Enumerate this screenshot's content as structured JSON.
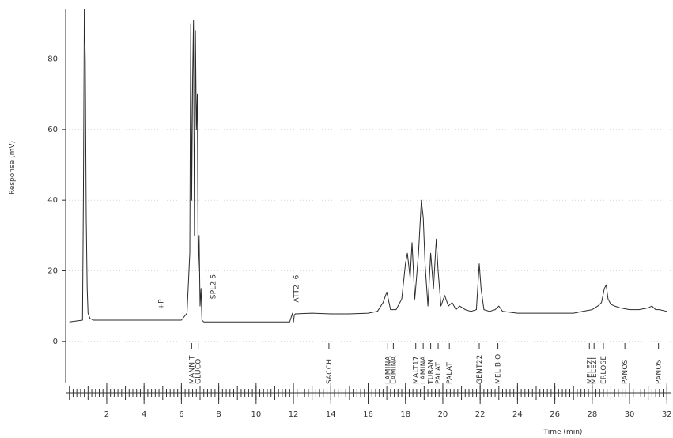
{
  "chart_data": {
    "type": "line",
    "xlabel": "Time (min)",
    "ylabel": "Response (mV)",
    "xlim": [
      -0.2,
      32.2
    ],
    "ylim": [
      -9,
      94
    ],
    "x_ticks": [
      "2",
      "4",
      "6",
      "8",
      "10",
      "12",
      "14",
      "16",
      "18",
      "20",
      "22",
      "24",
      "26",
      "28",
      "30",
      "32"
    ],
    "x_tick_values": [
      2,
      4,
      6,
      8,
      10,
      12,
      14,
      16,
      18,
      20,
      22,
      24,
      26,
      28,
      30,
      32
    ],
    "y_ticks": [
      "0",
      "20",
      "40",
      "60",
      "80"
    ],
    "y_tick_values": [
      0,
      20,
      40,
      60,
      80
    ],
    "grid": true,
    "series": [
      {
        "x": [
          0.0,
          0.7,
          0.75,
          0.8,
          0.85,
          0.9,
          0.95,
          1.0,
          1.1,
          1.3,
          1.6,
          2.0,
          3.0,
          4.0,
          5.0,
          5.8,
          6.0,
          6.3,
          6.45,
          6.5,
          6.55,
          6.6,
          6.65,
          6.7,
          6.75,
          6.8,
          6.85,
          6.9,
          6.95,
          7.0,
          7.05,
          7.1,
          7.2,
          7.5,
          8.0,
          9.0,
          10.0,
          11.0,
          11.8,
          11.95,
          12.0,
          12.05,
          12.1,
          13.0,
          14.0,
          15.0,
          16.0,
          16.5,
          16.8,
          17.0,
          17.2,
          17.5,
          17.8,
          18.0,
          18.1,
          18.25,
          18.35,
          18.5,
          18.7,
          18.85,
          18.95,
          19.05,
          19.2,
          19.35,
          19.5,
          19.65,
          19.75,
          19.9,
          20.1,
          20.3,
          20.5,
          20.7,
          20.9,
          21.2,
          21.5,
          21.8,
          21.95,
          22.05,
          22.2,
          22.5,
          22.8,
          23.0,
          23.2,
          24.0,
          25.0,
          26.0,
          27.0,
          27.5,
          28.0,
          28.3,
          28.5,
          28.65,
          28.75,
          28.85,
          29.0,
          29.2,
          29.5,
          30.0,
          30.5,
          31.0,
          31.2,
          31.4,
          31.6,
          32.0
        ],
        "values": [
          5.5,
          6,
          40,
          94,
          80,
          35,
          15,
          8,
          6.5,
          6,
          6,
          6,
          6,
          6,
          6,
          6,
          6,
          8,
          25,
          90,
          40,
          75,
          91,
          30,
          88,
          60,
          70,
          20,
          30,
          10,
          15,
          6,
          5.5,
          5.5,
          5.5,
          5.5,
          5.5,
          5.5,
          5.5,
          8,
          5.5,
          7.5,
          7.8,
          8,
          7.8,
          7.8,
          8,
          8.5,
          11,
          14,
          9,
          9,
          12,
          22,
          25,
          18,
          28,
          12,
          25,
          40,
          35,
          22,
          10,
          25,
          15,
          29,
          20,
          10,
          13,
          10,
          11,
          9,
          10,
          9,
          8.5,
          9,
          22,
          15,
          9,
          8.5,
          9,
          10,
          8.5,
          8,
          8,
          8,
          8,
          8.5,
          9,
          10,
          11,
          15,
          16,
          12,
          10.5,
          10,
          9.5,
          9,
          9,
          9.5,
          10,
          9,
          9,
          8.5
        ]
      }
    ],
    "annotations": [
      "+P",
      "SPL2 5",
      "ATT2 -6"
    ],
    "peak_labels": [
      {
        "t": 6.55,
        "text": "MANNIT"
      },
      {
        "t": 6.9,
        "text": "GLUCO"
      },
      {
        "t": 13.9,
        "text": "SACCH"
      },
      {
        "t": 17.05,
        "text": "LAMINA"
      },
      {
        "t": 17.35,
        "text": "LAMINA"
      },
      {
        "t": 18.55,
        "text": "MALT17"
      },
      {
        "t": 18.95,
        "text": "LAMINA"
      },
      {
        "t": 19.35,
        "text": "TURAN"
      },
      {
        "t": 19.75,
        "text": "PALATI"
      },
      {
        "t": 20.35,
        "text": "PALATI"
      },
      {
        "t": 21.95,
        "text": "GENT22"
      },
      {
        "t": 22.95,
        "text": "MELIBIO"
      },
      {
        "t": 27.85,
        "text": "MELEZI"
      },
      {
        "t": 28.1,
        "text": "MELEZI"
      },
      {
        "t": 28.6,
        "text": "ERLOSE"
      },
      {
        "t": 29.75,
        "text": "PANOS"
      },
      {
        "t": 31.55,
        "text": "PANOS"
      }
    ]
  }
}
